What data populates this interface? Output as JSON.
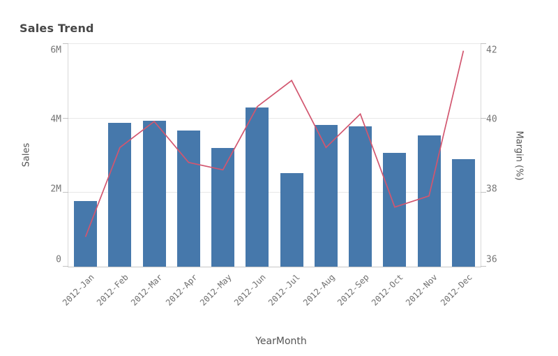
{
  "title": "Sales Trend",
  "chart_data": {
    "type": "combo",
    "subtype": "bar+line",
    "categories": [
      "2012-Jan",
      "2012-Feb",
      "2012-Mar",
      "2012-Apr",
      "2012-May",
      "2012-Jun",
      "2012-Jul",
      "2012-Aug",
      "2012-Sep",
      "2012-Oct",
      "2012-Nov",
      "2012-Dec"
    ],
    "series": [
      {
        "name": "Sales",
        "type": "bar",
        "axis": "left",
        "values_millions": [
          1.77,
          3.87,
          3.91,
          3.66,
          3.19,
          4.28,
          2.52,
          3.81,
          3.76,
          3.06,
          3.53,
          2.89
        ]
      },
      {
        "name": "Margin (%)",
        "type": "line",
        "axis": "right",
        "values_percent": [
          36.8,
          39.2,
          39.9,
          38.8,
          38.6,
          40.3,
          41.0,
          39.2,
          40.1,
          37.6,
          37.9,
          41.8
        ]
      }
    ],
    "left_axis": {
      "label": "Sales",
      "min": 0,
      "max": 6000000,
      "tick_labels": [
        "6M",
        "4M",
        "2M",
        "0"
      ]
    },
    "right_axis": {
      "label": "Margin (%)",
      "min": 36,
      "max": 42,
      "tick_labels": [
        "42",
        "40",
        "38",
        "36"
      ]
    },
    "x_axis": {
      "label": "YearMonth"
    },
    "grid": "horizontal",
    "legend": "none"
  },
  "colors": {
    "background": "#ffffff",
    "bar": "#4678ab",
    "line": "#d2566f",
    "grid": "#e8e8e8",
    "axis_line": "#c6c6c6",
    "tick_text": "#757575",
    "axis_title_text": "#545454",
    "title_text": "#474747"
  }
}
